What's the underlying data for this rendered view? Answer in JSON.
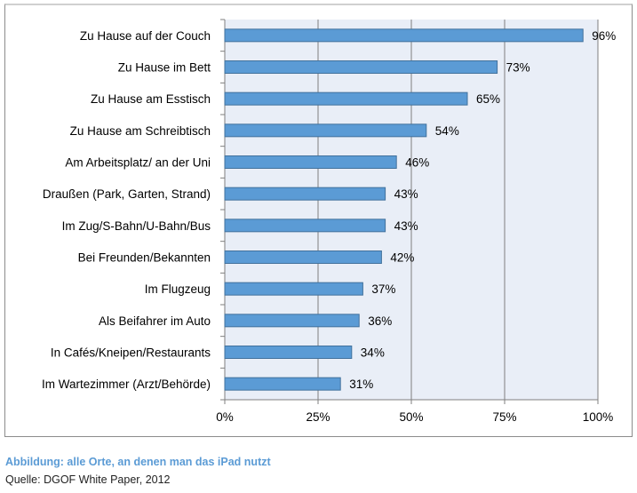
{
  "chart_data": {
    "type": "bar",
    "orientation": "horizontal",
    "categories": [
      "Zu Hause auf der Couch",
      "Zu Hause im Bett",
      "Zu Hause am Esstisch",
      "Zu Hause am Schreibtisch",
      "Am Arbeitsplatz/ an der Uni",
      "Draußen (Park, Garten, Strand)",
      "Im Zug/S-Bahn/U-Bahn/Bus",
      "Bei Freunden/Bekannten",
      "Im Flugzeug",
      "Als Beifahrer im Auto",
      "In Cafés/Kneipen/Restaurants",
      "Im Wartezimmer (Arzt/Behörde)"
    ],
    "values": [
      96,
      73,
      65,
      54,
      46,
      43,
      43,
      42,
      37,
      36,
      34,
      31
    ],
    "data_labels": [
      "96%",
      "73%",
      "65%",
      "54%",
      "46%",
      "43%",
      "43%",
      "42%",
      "37%",
      "36%",
      "34%",
      "31%"
    ],
    "xlim": [
      0,
      100
    ],
    "xticks": [
      0,
      25,
      50,
      75,
      100
    ],
    "xtick_labels": [
      "0%",
      "25%",
      "50%",
      "75%",
      "100%"
    ],
    "grid": true,
    "legend": "none",
    "colors": {
      "bar": "#5b9bd5",
      "bar_border": "#41719c",
      "plot_bg": "#e9eef7",
      "grid": "#7f7f7f"
    }
  },
  "caption": {
    "title": "Abbildung: alle Orte, an denen man das iPad nutzt",
    "source": "Quelle: DGOF White Paper, 2012"
  }
}
